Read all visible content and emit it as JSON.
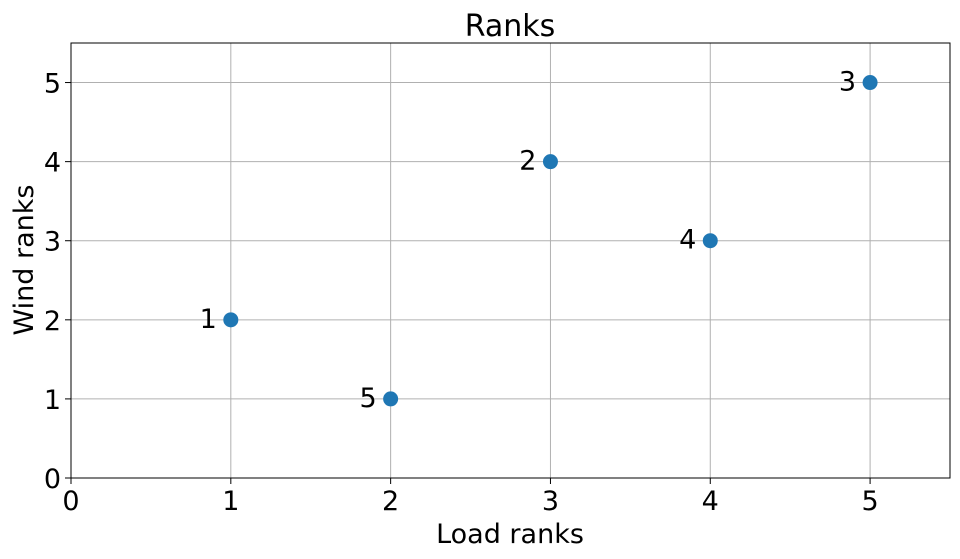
{
  "chart_data": {
    "type": "scatter",
    "title": "Ranks",
    "xlabel": "Load ranks",
    "ylabel": "Wind ranks",
    "xlim": [
      0,
      5.5
    ],
    "ylim": [
      0,
      5.5
    ],
    "x_ticks": [
      "0",
      "1",
      "2",
      "3",
      "4",
      "5"
    ],
    "y_ticks": [
      "0",
      "1",
      "2",
      "3",
      "4",
      "5"
    ],
    "grid": true,
    "marker_color": "#1f77b4",
    "points": [
      {
        "x": 1,
        "y": 2,
        "label": "1"
      },
      {
        "x": 3,
        "y": 4,
        "label": "2"
      },
      {
        "x": 5,
        "y": 5,
        "label": "3"
      },
      {
        "x": 4,
        "y": 3,
        "label": "4"
      },
      {
        "x": 2,
        "y": 1,
        "label": "5"
      }
    ]
  }
}
